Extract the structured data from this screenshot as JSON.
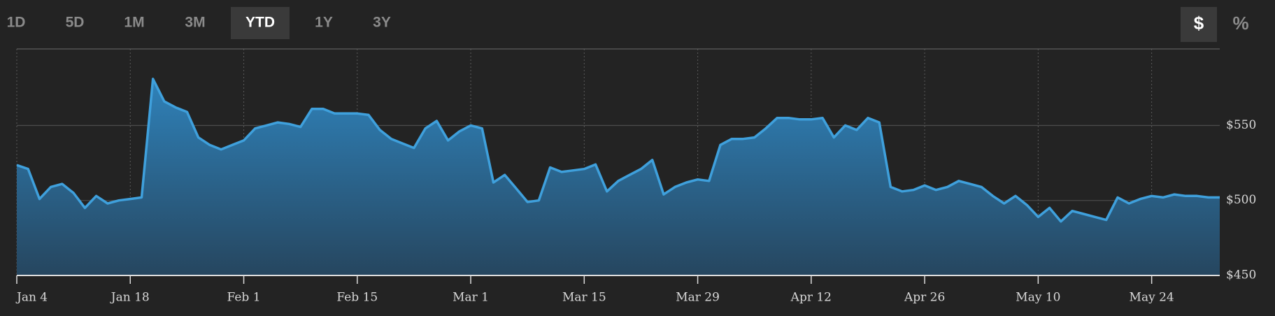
{
  "tabs": [
    "1D",
    "5D",
    "1M",
    "3M",
    "YTD",
    "1Y",
    "3Y"
  ],
  "active_tab": 4,
  "units": [
    "$",
    "%"
  ],
  "active_unit": 0,
  "chart_data": {
    "type": "area",
    "color": "#3fa0dc",
    "categories": [
      "Jan 4",
      null,
      null,
      null,
      null,
      null,
      null,
      null,
      null,
      null,
      "Jan 18",
      null,
      null,
      null,
      null,
      null,
      null,
      null,
      null,
      null,
      "Feb 1",
      null,
      null,
      null,
      null,
      null,
      null,
      null,
      null,
      null,
      "Feb 15",
      null,
      null,
      null,
      null,
      null,
      null,
      null,
      null,
      null,
      "Mar 1",
      null,
      null,
      null,
      null,
      null,
      null,
      null,
      null,
      null,
      "Mar 15",
      null,
      null,
      null,
      null,
      null,
      null,
      null,
      null,
      null,
      "Mar 29",
      null,
      null,
      null,
      null,
      null,
      null,
      null,
      null,
      null,
      "Apr 12",
      null,
      null,
      null,
      null,
      null,
      null,
      null,
      null,
      null,
      "Apr 26",
      null,
      null,
      null,
      null,
      null,
      null,
      null,
      null,
      null,
      "May 10",
      null,
      null,
      null,
      null,
      null,
      null,
      null,
      null,
      null,
      "May 24",
      null,
      null,
      null,
      null,
      null,
      null
    ],
    "values": [
      523.6,
      521,
      501,
      509,
      511,
      505,
      495,
      503,
      498,
      500,
      501,
      502,
      581,
      566,
      562,
      559,
      542,
      537,
      534,
      537,
      540,
      548,
      550,
      552,
      551,
      549,
      561,
      561,
      558,
      558,
      558,
      557,
      547,
      541,
      538,
      535,
      548,
      553,
      540,
      546,
      550,
      548,
      512,
      517,
      508,
      499,
      500,
      522,
      519,
      520,
      521,
      524,
      506,
      513,
      517,
      521,
      527,
      504,
      509,
      512,
      514,
      513,
      537,
      541,
      541,
      542,
      548,
      555,
      555,
      554,
      554,
      555,
      542,
      550,
      547,
      555,
      552,
      509,
      506,
      507,
      510,
      507,
      509,
      513,
      511,
      509,
      503,
      498,
      503,
      497,
      489,
      495,
      486,
      493,
      491,
      489,
      487,
      502,
      498,
      501,
      503,
      502,
      504,
      503,
      503,
      502,
      502
    ],
    "ylim": [
      450,
      601
    ],
    "yticks": [
      {
        "value": 450,
        "label": "$450"
      },
      {
        "value": 500,
        "label": "$500"
      },
      {
        "value": 550,
        "label": "$550"
      }
    ],
    "grid": true
  }
}
